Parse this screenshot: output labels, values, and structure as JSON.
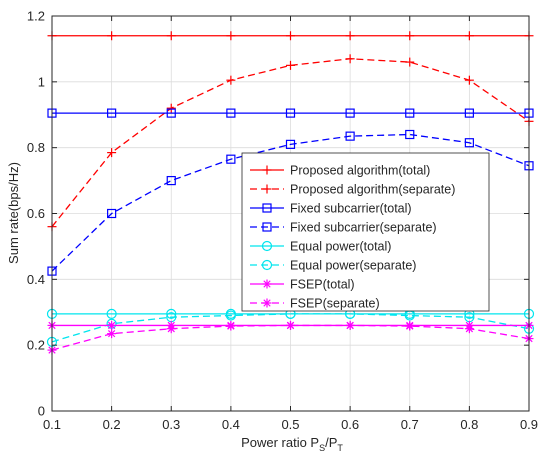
{
  "chart_data": {
    "type": "line",
    "title": "",
    "xlabel": "Power ratio P",
    "xlabel_sub1": "S",
    "xlabel_slash": "/P",
    "xlabel_sub2": "T",
    "ylabel": "Sum rate(bps/Hz)",
    "xlim": [
      0.1,
      0.9
    ],
    "ylim": [
      0,
      1.2
    ],
    "xticks": [
      "0.1",
      "0.2",
      "0.3",
      "0.4",
      "0.5",
      "0.6",
      "0.7",
      "0.8",
      "0.9"
    ],
    "yticks": [
      "0",
      "0.2",
      "0.4",
      "0.6",
      "0.8",
      "1",
      "1.2"
    ],
    "grid": true,
    "legend_position": "center-right",
    "x": [
      0.1,
      0.2,
      0.3,
      0.4,
      0.5,
      0.6,
      0.7,
      0.8,
      0.9
    ],
    "series": [
      {
        "name": "Proposed algorithm(total)",
        "color": "#ff0000",
        "dash": "solid",
        "marker": "plus",
        "values": [
          1.14,
          1.14,
          1.14,
          1.14,
          1.14,
          1.14,
          1.14,
          1.14,
          1.14
        ]
      },
      {
        "name": "Proposed algorithm(separate)",
        "color": "#ff0000",
        "dash": "dashed",
        "marker": "plus",
        "values": [
          0.56,
          0.785,
          0.92,
          1.005,
          1.05,
          1.07,
          1.06,
          1.005,
          0.88
        ]
      },
      {
        "name": "Fixed subcarrier(total)",
        "color": "#0000ff",
        "dash": "solid",
        "marker": "square",
        "values": [
          0.905,
          0.905,
          0.905,
          0.905,
          0.905,
          0.905,
          0.905,
          0.905,
          0.905
        ]
      },
      {
        "name": "Fixed subcarrier(separate)",
        "color": "#0000ff",
        "dash": "dashed",
        "marker": "square",
        "values": [
          0.425,
          0.6,
          0.7,
          0.765,
          0.81,
          0.835,
          0.84,
          0.815,
          0.745
        ]
      },
      {
        "name": "Equal power(total)",
        "color": "#00e5ee",
        "dash": "solid",
        "marker": "circle",
        "values": [
          0.295,
          0.295,
          0.295,
          0.295,
          0.295,
          0.295,
          0.295,
          0.295,
          0.295
        ]
      },
      {
        "name": "Equal power(separate)",
        "color": "#00e5ee",
        "dash": "dashed",
        "marker": "circle",
        "values": [
          0.21,
          0.265,
          0.285,
          0.29,
          0.295,
          0.295,
          0.29,
          0.285,
          0.25
        ]
      },
      {
        "name": "FSEP(total)",
        "color": "#ff00ff",
        "dash": "solid",
        "marker": "asterisk",
        "values": [
          0.26,
          0.26,
          0.26,
          0.26,
          0.26,
          0.26,
          0.26,
          0.26,
          0.26
        ]
      },
      {
        "name": "FSEP(separate)",
        "color": "#ff00ff",
        "dash": "dashed",
        "marker": "asterisk",
        "values": [
          0.185,
          0.235,
          0.25,
          0.258,
          0.26,
          0.26,
          0.258,
          0.25,
          0.22
        ]
      }
    ]
  }
}
